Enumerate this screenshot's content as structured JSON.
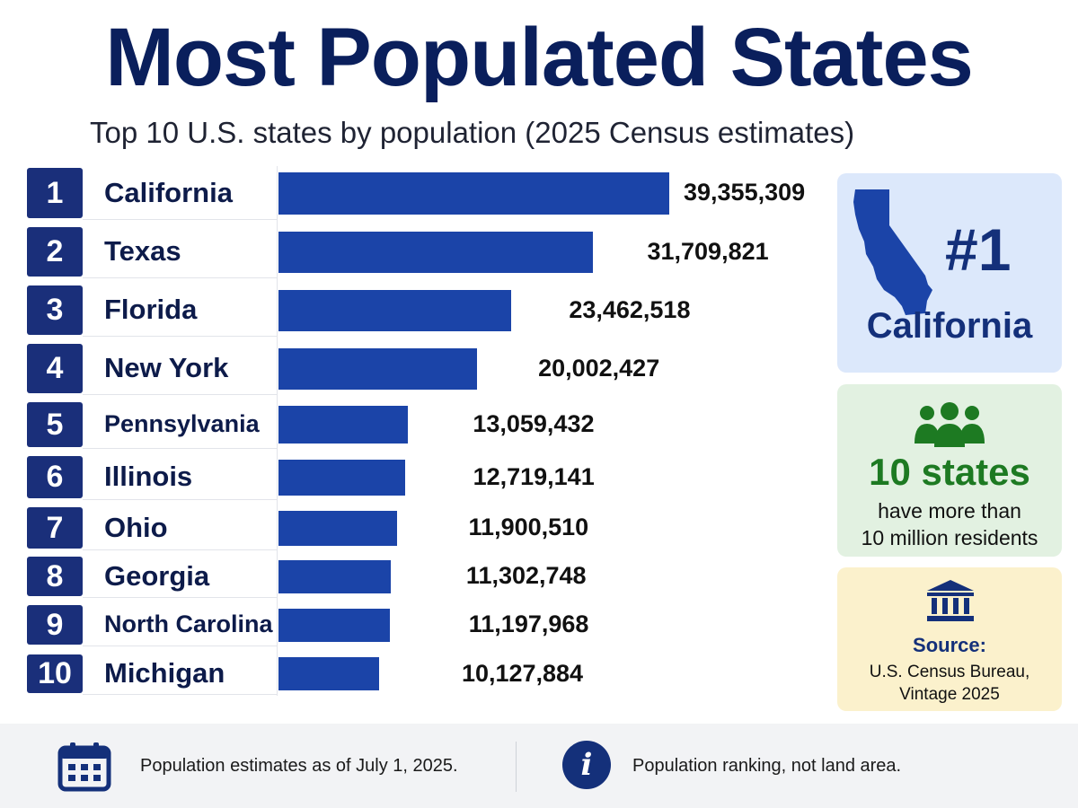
{
  "title": "Most Populated States",
  "subtitle": "Top 10 U.S. states by population (2025 Census estimates)",
  "chart_data": {
    "type": "bar",
    "orientation": "horizontal",
    "title": "Most Populated States",
    "subtitle": "Top 10 U.S. states by population (2025 Census estimates)",
    "ranks": [
      "1",
      "2",
      "3",
      "4",
      "5",
      "6",
      "7",
      "8",
      "9",
      "10"
    ],
    "categories": [
      "California",
      "Texas",
      "Florida",
      "New York",
      "Pennsylvania",
      "Illinois",
      "Ohio",
      "Georgia",
      "North Carolina",
      "Michigan"
    ],
    "values": [
      39355309,
      31709821,
      23462518,
      20002427,
      13059432,
      12719141,
      11900510,
      11302748,
      11197968,
      10127884
    ],
    "value_labels": [
      "39,355,309",
      "31,709,821",
      "23,462,518",
      "20,002,427",
      "13,059,432",
      "12,719,141",
      "11,900,510",
      "11,302,748",
      "11,197,968",
      "10,127,884"
    ],
    "bar_color": "#1b44a8",
    "grid": false,
    "legend": "none"
  },
  "sidebar": {
    "top_rank": {
      "rank_label": "#1",
      "state": "California",
      "icon": "california-map-icon"
    },
    "states_count": {
      "number": "10 states",
      "line1": "have more than",
      "line2": "10 million residents",
      "icon": "people-group-icon"
    },
    "source": {
      "label": "Source:",
      "line1": "U.S. Census Bureau,",
      "line2": "Vintage 2025",
      "icon": "government-building-icon"
    }
  },
  "footer": {
    "note_date": "Population estimates as of July 1, 2025.",
    "note_info": "Population ranking, not land area.",
    "info_glyph": "i",
    "icons": [
      "calendar-icon",
      "info-icon"
    ]
  },
  "colors": {
    "navy": "#0a1f5c",
    "bar_blue": "#1b44a8",
    "rank_badge": "#1a2f7a",
    "green": "#1d7a22",
    "card_blue": "#dce8fb",
    "card_green": "#e2f1e1",
    "card_yellow": "#fbf1cc"
  }
}
